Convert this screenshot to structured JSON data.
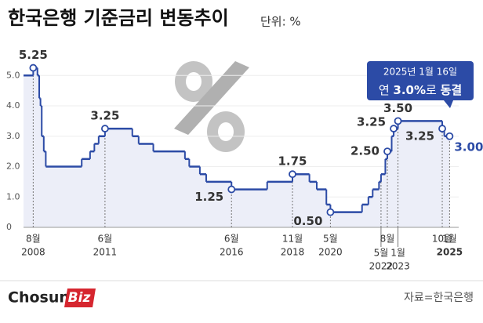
{
  "chart_data": {
    "type": "line",
    "step": true,
    "title": "한국은행 기준금리 변동추이",
    "subtitle": "단위: %",
    "color": "#2c4ba6",
    "fill_color": "#eceef8",
    "label_color": "#2c4ba6",
    "x": [
      2008.2,
      2008.583,
      2008.75,
      2008.82,
      2008.87,
      2008.92,
      2009.0,
      2009.08,
      2010.5,
      2010.83,
      2011.0,
      2011.17,
      2011.42,
      2012.5,
      2012.75,
      2013.33,
      2014.58,
      2014.75,
      2015.17,
      2015.42,
      2016.42,
      2017.83,
      2018.83,
      2019.5,
      2019.79,
      2020.17,
      2020.33,
      2021.58,
      2021.83,
      2022.0,
      2022.25,
      2022.33,
      2022.5,
      2022.58,
      2022.75,
      2022.83,
      2023.0,
      2024.75,
      2024.83,
      2025.04
    ],
    "values": [
      5.0,
      5.25,
      5.0,
      4.25,
      4.0,
      3.0,
      2.5,
      2.0,
      2.25,
      2.5,
      2.75,
      3.0,
      3.25,
      3.0,
      2.75,
      2.5,
      2.25,
      2.0,
      1.75,
      1.5,
      1.25,
      1.5,
      1.75,
      1.5,
      1.25,
      0.75,
      0.5,
      0.75,
      1.0,
      1.25,
      1.5,
      1.75,
      2.25,
      2.5,
      3.0,
      3.25,
      3.5,
      3.25,
      3.0,
      3.0
    ],
    "value_labels": [
      null,
      "5.25",
      null,
      null,
      null,
      null,
      null,
      null,
      null,
      null,
      null,
      null,
      "3.25",
      null,
      null,
      null,
      null,
      null,
      null,
      null,
      "1.25",
      null,
      "1.75",
      null,
      null,
      null,
      "0.50",
      null,
      null,
      null,
      null,
      null,
      null,
      "2.50",
      null,
      "3.25",
      "3.50",
      "3.25",
      null,
      "3.00"
    ],
    "xlim": [
      2008.2,
      2025.4
    ],
    "xticks": [
      {
        "value": 2008.583,
        "label": "8월",
        "year": "2008"
      },
      {
        "value": 2011.42,
        "label": "6월",
        "year": "2011"
      },
      {
        "value": 2016.42,
        "label": "6월",
        "year": "2016"
      },
      {
        "value": 2018.83,
        "label": "11월",
        "year": "2018"
      },
      {
        "value": 2020.33,
        "label": "5월",
        "year": "2020"
      },
      {
        "value": 2022.33,
        "label": "5월",
        "year": "2022"
      },
      {
        "value": 2022.58,
        "label": "8월"
      },
      {
        "value": 2023.0,
        "label": "1월",
        "year": "2023"
      },
      {
        "value": 2024.75,
        "label": "10월"
      },
      {
        "value": 2025.04,
        "label": "1월",
        "year": "2025"
      }
    ],
    "ylim": [
      0,
      5.6
    ],
    "yticks": [
      0,
      {
        "value": 1,
        "label": "1.0"
      },
      {
        "value": 2,
        "label": "2.0"
      },
      {
        "value": 3,
        "label": "3.0"
      },
      {
        "value": 4,
        "label": "4.0"
      },
      {
        "value": 5,
        "label": "5.0"
      }
    ],
    "grid": true,
    "annotation": {
      "date": "2025년 1월 16일",
      "parts": [
        "연 ",
        "3.0%",
        "로 ",
        "동결"
      ]
    },
    "source": "자료=한국은행",
    "logo": [
      "Chosun",
      "Biz"
    ]
  }
}
